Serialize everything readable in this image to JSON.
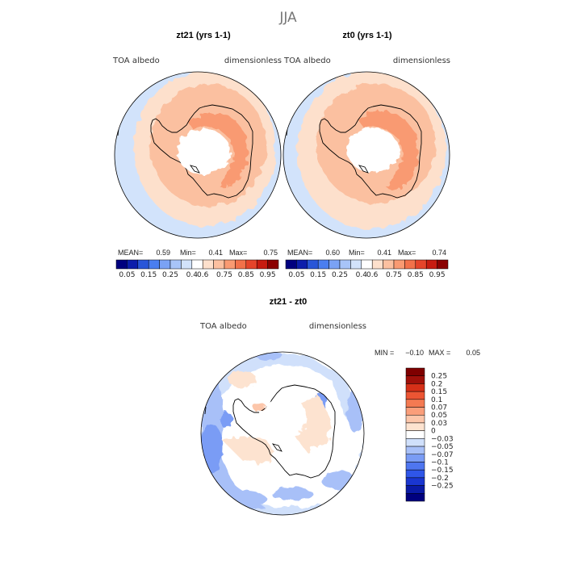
{
  "title": "JJA",
  "colors": {
    "scale": [
      "#00007f",
      "#0c1eab",
      "#2856d8",
      "#4a7ef0",
      "#7aa2f5",
      "#a8c4f8",
      "#d2e3fb",
      "#ffffff",
      "#fde0cc",
      "#fbc0a0",
      "#f99a72",
      "#f2714a",
      "#e5442a",
      "#c71b10",
      "#8b0000"
    ],
    "diff_scale": [
      "#00007f",
      "#0a1aa6",
      "#1a36d0",
      "#2f56e8",
      "#4f76f0",
      "#7a9cf5",
      "#a8c0f8",
      "#d0e0fb",
      "#ffffff",
      "#fde3d0",
      "#fcc6aa",
      "#fa9e7a",
      "#f47a52",
      "#ec5533",
      "#d63018",
      "#a0100a",
      "#7f0000"
    ],
    "land_outline": "#000000",
    "ocean_low": "#d2e3fb",
    "ocean_mid": "#fde0cc",
    "ice_mid": "#fbc0a0",
    "ice_high": "#f99a72"
  },
  "panels": [
    {
      "title": "zt21 (yrs 1-1)",
      "left_label": "TOA albedo",
      "right_label": "dimensionless",
      "stats": {
        "mean_label": "MEAN=",
        "mean": "0.59",
        "min_label": "Min=",
        "min": "0.41",
        "max_label": "Max=",
        "max": "0.75"
      },
      "colorbar_labels": [
        "0.05",
        "0.15",
        "0.25",
        "0.4",
        "0.6",
        "0.75",
        "0.85",
        "0.95"
      ]
    },
    {
      "title": "zt0 (yrs 1-1)",
      "left_label": "TOA albedo",
      "right_label": "dimensionless",
      "stats": {
        "mean_label": "MEAN=",
        "mean": "0.60",
        "min_label": "Min=",
        "min": "0.41",
        "max_label": "Max=",
        "max": "0.74"
      },
      "colorbar_labels": [
        "0.05",
        "0.15",
        "0.25",
        "0.4",
        "0.6",
        "0.75",
        "0.85",
        "0.95"
      ]
    }
  ],
  "diff_panel": {
    "title": "zt21 - zt0",
    "left_label": "TOA albedo",
    "right_label": "dimensionless",
    "min_label": "MIN =",
    "min": "−0.10",
    "max_label": "MAX =",
    "max": "0.05",
    "colorbar_labels": [
      "0.25",
      "0.2",
      "0.15",
      "0.1",
      "0.07",
      "0.05",
      "0.03",
      "0",
      "−0.03",
      "−0.05",
      "−0.07",
      "−0.1",
      "−0.15",
      "−0.2",
      "−0.25"
    ]
  },
  "chart_data": [
    {
      "type": "heatmap",
      "projection": "south-polar-stereographic",
      "title": "zt21 (yrs 1-1)",
      "variable": "TOA albedo",
      "units": "dimensionless",
      "season": "JJA",
      "mean": 0.59,
      "min": 0.41,
      "max": 0.75,
      "contour_levels": [
        0.05,
        0.1,
        0.15,
        0.2,
        0.25,
        0.3,
        0.4,
        0.5,
        0.6,
        0.7,
        0.75,
        0.8,
        0.85,
        0.9,
        0.95
      ],
      "colorbar_tick_labels": [
        "0.05",
        "0.15",
        "0.25",
        "0.4",
        "0.6",
        "0.75",
        "0.85",
        "0.95"
      ]
    },
    {
      "type": "heatmap",
      "projection": "south-polar-stereographic",
      "title": "zt0 (yrs 1-1)",
      "variable": "TOA albedo",
      "units": "dimensionless",
      "season": "JJA",
      "mean": 0.6,
      "min": 0.41,
      "max": 0.74,
      "contour_levels": [
        0.05,
        0.1,
        0.15,
        0.2,
        0.25,
        0.3,
        0.4,
        0.5,
        0.6,
        0.7,
        0.75,
        0.8,
        0.85,
        0.9,
        0.95
      ],
      "colorbar_tick_labels": [
        "0.05",
        "0.15",
        "0.25",
        "0.4",
        "0.6",
        "0.75",
        "0.85",
        "0.95"
      ]
    },
    {
      "type": "heatmap",
      "projection": "south-polar-stereographic",
      "title": "zt21 - zt0",
      "variable": "TOA albedo",
      "units": "dimensionless",
      "season": "JJA",
      "min": -0.1,
      "max": 0.05,
      "contour_levels": [
        -0.25,
        -0.2,
        -0.15,
        -0.1,
        -0.07,
        -0.05,
        -0.03,
        0,
        0.03,
        0.05,
        0.07,
        0.1,
        0.15,
        0.2,
        0.25
      ],
      "colorbar_tick_labels": [
        "0.25",
        "0.2",
        "0.15",
        "0.1",
        "0.07",
        "0.05",
        "0.03",
        "0",
        "-0.03",
        "-0.05",
        "-0.07",
        "-0.1",
        "-0.15",
        "-0.2",
        "-0.25"
      ]
    }
  ]
}
